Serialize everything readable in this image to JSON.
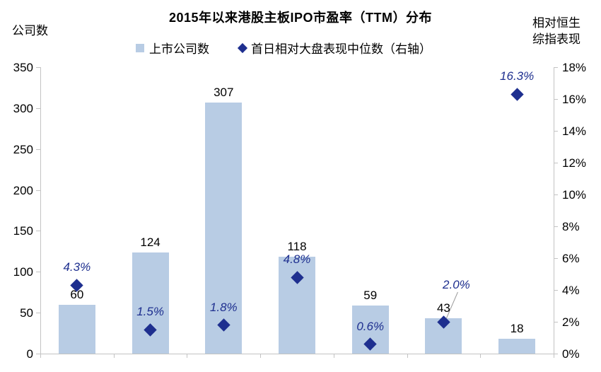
{
  "chart_data": {
    "type": "bar",
    "title": "2015年以来港股主板IPO市盈率（TTM）分布",
    "categories": [
      "",
      "",
      "",
      "",
      "",
      "",
      ""
    ],
    "series": [
      {
        "name": "上市公司数",
        "type": "bar",
        "axis": "left",
        "values": [
          60,
          124,
          307,
          118,
          59,
          43,
          18
        ],
        "labels": [
          "60",
          "124",
          "307",
          "118",
          "59",
          "43",
          "18"
        ],
        "color": "#B8CCE4"
      },
      {
        "name": "首日相对大盘表现中位数（右轴）",
        "type": "scatter",
        "marker": "diamond",
        "axis": "right",
        "values": [
          4.3,
          1.5,
          1.8,
          4.8,
          0.6,
          2.0,
          16.3
        ],
        "labels": [
          "4.3%",
          "1.5%",
          "1.8%",
          "4.8%",
          "0.6%",
          "2.0%",
          "16.3%"
        ],
        "color": "#1E2F8F"
      }
    ],
    "left_axis": {
      "title": "公司数",
      "min": 0,
      "max": 350,
      "step": 50,
      "ticks": [
        "350",
        "300",
        "250",
        "200",
        "150",
        "100",
        "50",
        "0"
      ]
    },
    "right_axis": {
      "title_lines": [
        "相对恒生",
        "综指表现"
      ],
      "min": 0,
      "max": 18,
      "step": 2,
      "ticks": [
        "18%",
        "16%",
        "14%",
        "12%",
        "10%",
        "8%",
        "6%",
        "4%",
        "2%",
        "0%"
      ]
    },
    "x_axis": {
      "labels_visible": false
    },
    "grid": false,
    "legend_position": "top-center",
    "legend": [
      {
        "label": "上市公司数",
        "marker": "square",
        "color": "#B8CCE4"
      },
      {
        "label": "首日相对大盘表现中位数（右轴）",
        "marker": "diamond",
        "color": "#1E2F8F"
      }
    ]
  },
  "colors": {
    "bar_fill": "#B8CCE4",
    "diamond_fill": "#1E2F8F",
    "pct_label_text": "#1E2F8F",
    "value_label_text": "#000000",
    "axis_line": "#C3C3C3",
    "leader_line": "#9B9B9B",
    "background": "#FFFFFF"
  }
}
